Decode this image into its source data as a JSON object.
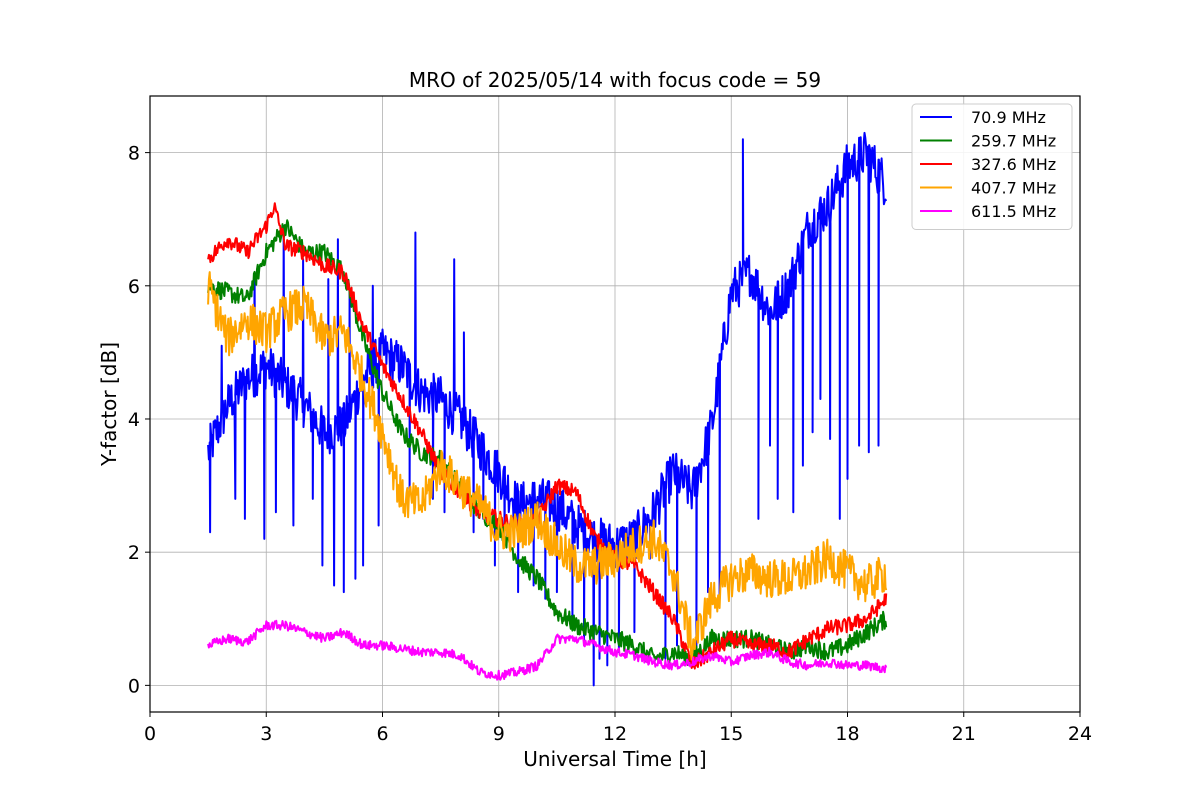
{
  "chart_data": {
    "type": "line",
    "title": "MRO of 2025/05/14 with focus code = 59",
    "xlabel": "Universal Time [h]",
    "ylabel": "Y-factor [dB]",
    "xlim": [
      0,
      24
    ],
    "ylim": [
      -0.4,
      8.85
    ],
    "xticks": [
      0,
      3,
      6,
      9,
      12,
      15,
      18,
      21,
      24
    ],
    "yticks": [
      0,
      2,
      4,
      6,
      8
    ],
    "grid": true,
    "legend_position": "top-right",
    "series": [
      {
        "name": "70.9 MHz",
        "legend_label": " 70.9 MHz",
        "color": "#0000ff",
        "x": [
          1.5,
          2,
          2.5,
          3,
          3.5,
          4,
          4.5,
          5,
          5.5,
          6,
          6.5,
          7,
          7.5,
          8,
          8.5,
          9,
          9.5,
          10,
          10.5,
          11,
          11.5,
          12,
          12.5,
          13,
          13.5,
          14,
          14.5,
          15,
          15.5,
          16,
          16.5,
          17,
          17.5,
          18,
          18.5,
          19
        ],
        "y": [
          3.5,
          4.2,
          4.6,
          4.8,
          4.5,
          4.2,
          3.8,
          3.9,
          4.6,
          5,
          4.8,
          4.4,
          4.3,
          4,
          3.6,
          3.2,
          2.7,
          2.8,
          2.7,
          2.4,
          2.2,
          2.1,
          2.2,
          2.6,
          3.2,
          2.9,
          3.9,
          5.9,
          6.2,
          5.6,
          6,
          6.9,
          7.2,
          7.8,
          8,
          7.5
        ],
        "noise": 0.35,
        "spikes": [
          {
            "x": 1.55,
            "y": 2.3
          },
          {
            "x": 1.85,
            "y": 5.1
          },
          {
            "x": 2.2,
            "y": 2.8
          },
          {
            "x": 2.45,
            "y": 2.5
          },
          {
            "x": 2.7,
            "y": 6.2
          },
          {
            "x": 2.95,
            "y": 2.2
          },
          {
            "x": 3.25,
            "y": 2.6
          },
          {
            "x": 3.45,
            "y": 6.9
          },
          {
            "x": 3.7,
            "y": 2.4
          },
          {
            "x": 3.95,
            "y": 6.4
          },
          {
            "x": 4.2,
            "y": 2.8
          },
          {
            "x": 4.45,
            "y": 1.8
          },
          {
            "x": 4.6,
            "y": 6.1
          },
          {
            "x": 4.75,
            "y": 1.5
          },
          {
            "x": 4.85,
            "y": 6.7
          },
          {
            "x": 5,
            "y": 1.4
          },
          {
            "x": 5.15,
            "y": 5.9
          },
          {
            "x": 5.3,
            "y": 1.6
          },
          {
            "x": 5.5,
            "y": 1.8
          },
          {
            "x": 5.75,
            "y": 6
          },
          {
            "x": 5.9,
            "y": 2.4
          },
          {
            "x": 6.4,
            "y": 4.9
          },
          {
            "x": 6.7,
            "y": 2.9
          },
          {
            "x": 6.85,
            "y": 6.8
          },
          {
            "x": 7.3,
            "y": 2.8
          },
          {
            "x": 7.6,
            "y": 2.6
          },
          {
            "x": 7.85,
            "y": 6.4
          },
          {
            "x": 8.1,
            "y": 5.3
          },
          {
            "x": 8.35,
            "y": 2.3
          },
          {
            "x": 8.6,
            "y": 2.5
          },
          {
            "x": 8.9,
            "y": 1.8
          },
          {
            "x": 9.15,
            "y": 2.2
          },
          {
            "x": 9.5,
            "y": 1.4
          },
          {
            "x": 9.9,
            "y": 1.5
          },
          {
            "x": 10.2,
            "y": 1.3
          },
          {
            "x": 10.5,
            "y": 1.4
          },
          {
            "x": 10.9,
            "y": 0.9
          },
          {
            "x": 11.2,
            "y": 0.6
          },
          {
            "x": 11.45,
            "y": 0
          },
          {
            "x": 11.6,
            "y": 0.4
          },
          {
            "x": 11.8,
            "y": 0.3
          },
          {
            "x": 12.1,
            "y": 0.5
          },
          {
            "x": 12.5,
            "y": 0.8
          },
          {
            "x": 12.9,
            "y": 1.9
          },
          {
            "x": 13.3,
            "y": 0.4
          },
          {
            "x": 13.6,
            "y": 0.6
          },
          {
            "x": 14.1,
            "y": 0.5
          },
          {
            "x": 14.4,
            "y": 1.4
          },
          {
            "x": 14.7,
            "y": 1.3
          },
          {
            "x": 15.3,
            "y": 8.2
          },
          {
            "x": 15.7,
            "y": 2.5
          },
          {
            "x": 16,
            "y": 3.6
          },
          {
            "x": 16.2,
            "y": 2.8
          },
          {
            "x": 16.6,
            "y": 2.6
          },
          {
            "x": 16.85,
            "y": 3.3
          },
          {
            "x": 17.1,
            "y": 3.8
          },
          {
            "x": 17.3,
            "y": 4.3
          },
          {
            "x": 17.55,
            "y": 3.7
          },
          {
            "x": 17.8,
            "y": 2.5
          },
          {
            "x": 18,
            "y": 3.1
          },
          {
            "x": 18.3,
            "y": 3.6
          },
          {
            "x": 18.55,
            "y": 3.5
          },
          {
            "x": 18.8,
            "y": 3.6
          }
        ]
      },
      {
        "name": "259.7 MHz",
        "legend_label": "259.7 MHz",
        "color": "#008000",
        "x": [
          1.5,
          2,
          2.5,
          3,
          3.5,
          4,
          4.5,
          5,
          5.5,
          6,
          6.5,
          7,
          7.5,
          8,
          8.5,
          9,
          9.5,
          10,
          10.5,
          11,
          11.5,
          12,
          12.5,
          13,
          13.5,
          14,
          14.5,
          15,
          15.5,
          16,
          16.5,
          17,
          17.5,
          18,
          18.5,
          19
        ],
        "y": [
          6,
          5.9,
          5.8,
          6.5,
          6.9,
          6.5,
          6.5,
          6.2,
          5.2,
          4.4,
          3.8,
          3.5,
          3.4,
          3,
          2.6,
          2.4,
          1.9,
          1.6,
          1.1,
          0.9,
          0.8,
          0.7,
          0.6,
          0.4,
          0.5,
          0.4,
          0.7,
          0.7,
          0.7,
          0.6,
          0.5,
          0.6,
          0.5,
          0.6,
          0.8,
          1
        ],
        "noise": 0.14,
        "spikes": []
      },
      {
        "name": "327.6 MHz",
        "legend_label": "327.6 MHz",
        "color": "#ff0000",
        "x": [
          1.5,
          2,
          2.5,
          3,
          3.2,
          3.5,
          4,
          4.5,
          5,
          5.5,
          6,
          6.5,
          7,
          7.5,
          8,
          8.5,
          9,
          9.5,
          10,
          10.5,
          11,
          11.5,
          12,
          12.5,
          13,
          13.5,
          14,
          14.5,
          15,
          15.5,
          16,
          16.5,
          17,
          17.5,
          18,
          18.5,
          19
        ],
        "y": [
          6.4,
          6.7,
          6.5,
          6.9,
          7.2,
          6.6,
          6.5,
          6.3,
          6.2,
          5.4,
          4.8,
          4.3,
          3.8,
          3.2,
          2.9,
          2.6,
          2.5,
          2.4,
          2.5,
          3,
          2.9,
          2.2,
          1.9,
          1.8,
          1.4,
          1,
          0.3,
          0.5,
          0.7,
          0.6,
          0.6,
          0.5,
          0.7,
          0.85,
          0.9,
          1,
          1.3
        ],
        "noise": 0.12,
        "spikes": []
      },
      {
        "name": "407.7 MHz",
        "legend_label": "407.7 MHz",
        "color": "#ffa500",
        "x": [
          1.5,
          2,
          2.5,
          3,
          3.5,
          4,
          4.5,
          5,
          5.5,
          6,
          6.5,
          7,
          7.5,
          8,
          8.5,
          9,
          9.5,
          10,
          10.5,
          11,
          11.5,
          12,
          12.5,
          13,
          13.5,
          14,
          14.5,
          15,
          15.5,
          16,
          16.5,
          17,
          17.5,
          18,
          18.5,
          19
        ],
        "y": [
          6,
          5.2,
          5.5,
          5.3,
          5.6,
          5.7,
          5.2,
          5.3,
          4.6,
          3.8,
          2.8,
          2.7,
          3.3,
          3,
          2.7,
          2.3,
          2.3,
          2.5,
          2.1,
          1.8,
          1.8,
          1.9,
          2.1,
          2.2,
          1.7,
          0.6,
          1.3,
          1.6,
          1.7,
          1.6,
          1.6,
          1.7,
          1.9,
          1.7,
          1.5,
          1.7
        ],
        "noise": 0.3,
        "spikes": []
      },
      {
        "name": "611.5 MHz",
        "legend_label": "611.5 MHz",
        "color": "#ff00ff",
        "x": [
          1.5,
          2,
          2.5,
          3,
          3.5,
          4,
          4.5,
          5,
          5.5,
          6,
          6.5,
          7,
          7.5,
          8,
          8.5,
          9,
          9.5,
          10,
          10.5,
          11,
          11.5,
          12,
          12.5,
          13,
          13.5,
          14,
          14.5,
          15,
          15.5,
          16,
          16.5,
          17,
          17.5,
          18,
          18.5,
          19
        ],
        "y": [
          0.6,
          0.7,
          0.65,
          0.9,
          0.9,
          0.8,
          0.7,
          0.8,
          0.6,
          0.6,
          0.55,
          0.5,
          0.5,
          0.45,
          0.2,
          0.15,
          0.2,
          0.3,
          0.7,
          0.7,
          0.6,
          0.5,
          0.45,
          0.35,
          0.3,
          0.35,
          0.45,
          0.35,
          0.45,
          0.5,
          0.35,
          0.3,
          0.35,
          0.3,
          0.3,
          0.25
        ],
        "noise": 0.07,
        "spikes": []
      }
    ]
  }
}
